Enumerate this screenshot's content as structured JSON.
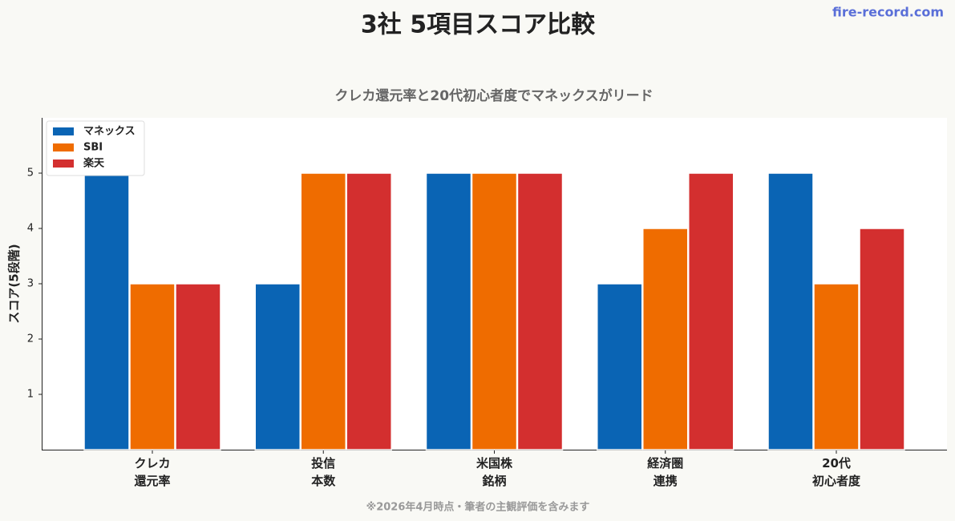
{
  "chart_data": {
    "type": "bar",
    "title": "3社 5項目スコア比較",
    "watermark": "fire-record.com",
    "subtitle": "クレカ還元率と20代初心者度でマネックスがリード",
    "ylabel": "スコア(5段階)",
    "footnote": "※2026年4月時点・筆者の主観評価を含みます",
    "categories": [
      "クレカ\n還元率",
      "投信\n本数",
      "米国株\n銘柄",
      "経済圏\n連携",
      "20代\n初心者度"
    ],
    "series": [
      {
        "name": "マネックス",
        "color": "#0a64b4",
        "values": [
          5,
          3,
          5,
          3,
          5
        ]
      },
      {
        "name": "SBI",
        "color": "#ef6c00",
        "values": [
          3,
          5,
          5,
          4,
          3
        ]
      },
      {
        "name": "楽天",
        "color": "#d32f2f",
        "values": [
          3,
          5,
          5,
          5,
          4
        ]
      }
    ],
    "ylim": [
      0,
      6
    ],
    "yticks": [
      1,
      2,
      3,
      4,
      5
    ],
    "grid": false,
    "legend": "upper left"
  }
}
